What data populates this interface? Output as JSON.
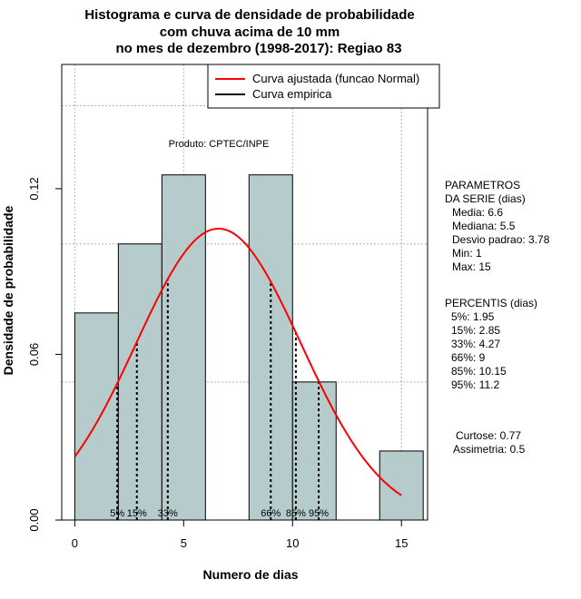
{
  "chart_data": {
    "type": "bar",
    "title_lines": [
      "Histograma e curva de densidade de probabilidade",
      "com chuva acima de 10 mm",
      "no mes de dezembro (1998-2017): Regiao 83"
    ],
    "xlabel": "Numero de dias",
    "ylabel": "Densidade de probabilidade",
    "xlim": [
      -0.6,
      16.2
    ],
    "ylim": [
      0,
      0.165
    ],
    "x_ticks": [
      0,
      5,
      10,
      15
    ],
    "x_tick_labels": [
      "0",
      "5",
      "10",
      "15"
    ],
    "y_ticks": [
      0.0,
      0.06,
      0.12
    ],
    "y_tick_labels": [
      "0.00",
      "0.06",
      "0.12"
    ],
    "grid": true,
    "bins": [
      {
        "x0": 0,
        "x1": 2,
        "density": 0.075
      },
      {
        "x0": 2,
        "x1": 4,
        "density": 0.1
      },
      {
        "x0": 4,
        "x1": 6,
        "density": 0.125
      },
      {
        "x0": 6,
        "x1": 8,
        "density": 0.0
      },
      {
        "x0": 8,
        "x1": 10,
        "density": 0.125
      },
      {
        "x0": 10,
        "x1": 12,
        "density": 0.05
      },
      {
        "x0": 12,
        "x1": 14,
        "density": 0.0
      },
      {
        "x0": 14,
        "x1": 16,
        "density": 0.025
      }
    ],
    "bar_color": "#b6cccc",
    "normal_curve": {
      "name": "Curva ajustada (funcao Normal)",
      "mean": 6.6,
      "sd": 3.78,
      "x_range": [
        0,
        15
      ],
      "color": "#ff0000"
    },
    "empirical_curve": {
      "name": "Curva empirica",
      "color": "#000000"
    },
    "legend_position": "top-right",
    "percentile_lines": [
      {
        "x": 1.95,
        "label": "5%"
      },
      {
        "x": 2.85,
        "label": "15%"
      },
      {
        "x": 4.27,
        "label": "33%"
      },
      {
        "x": 9,
        "label": "66%"
      },
      {
        "x": 10.15,
        "label": "85%"
      },
      {
        "x": 11.2,
        "label": "95%"
      }
    ],
    "annotation": "Produto: CPTEC/INPE"
  },
  "side_panel": {
    "params_title_1": "PARAMETROS",
    "params_title_2": "DA SERIE (dias)",
    "params": [
      "Media: 6.6",
      "Mediana: 5.5",
      "Desvio padrao: 3.78",
      "Min: 1",
      "Max: 15"
    ],
    "percentis_title": "PERCENTIS (dias)",
    "percentis": [
      "5%: 1.95",
      "15%: 2.85",
      "33%: 4.27",
      "66%: 9",
      "85%: 10.15",
      "95%: 11.2"
    ],
    "curtose": "Curtose: 0.77",
    "assimetria": "Assimetria: 0.5"
  }
}
